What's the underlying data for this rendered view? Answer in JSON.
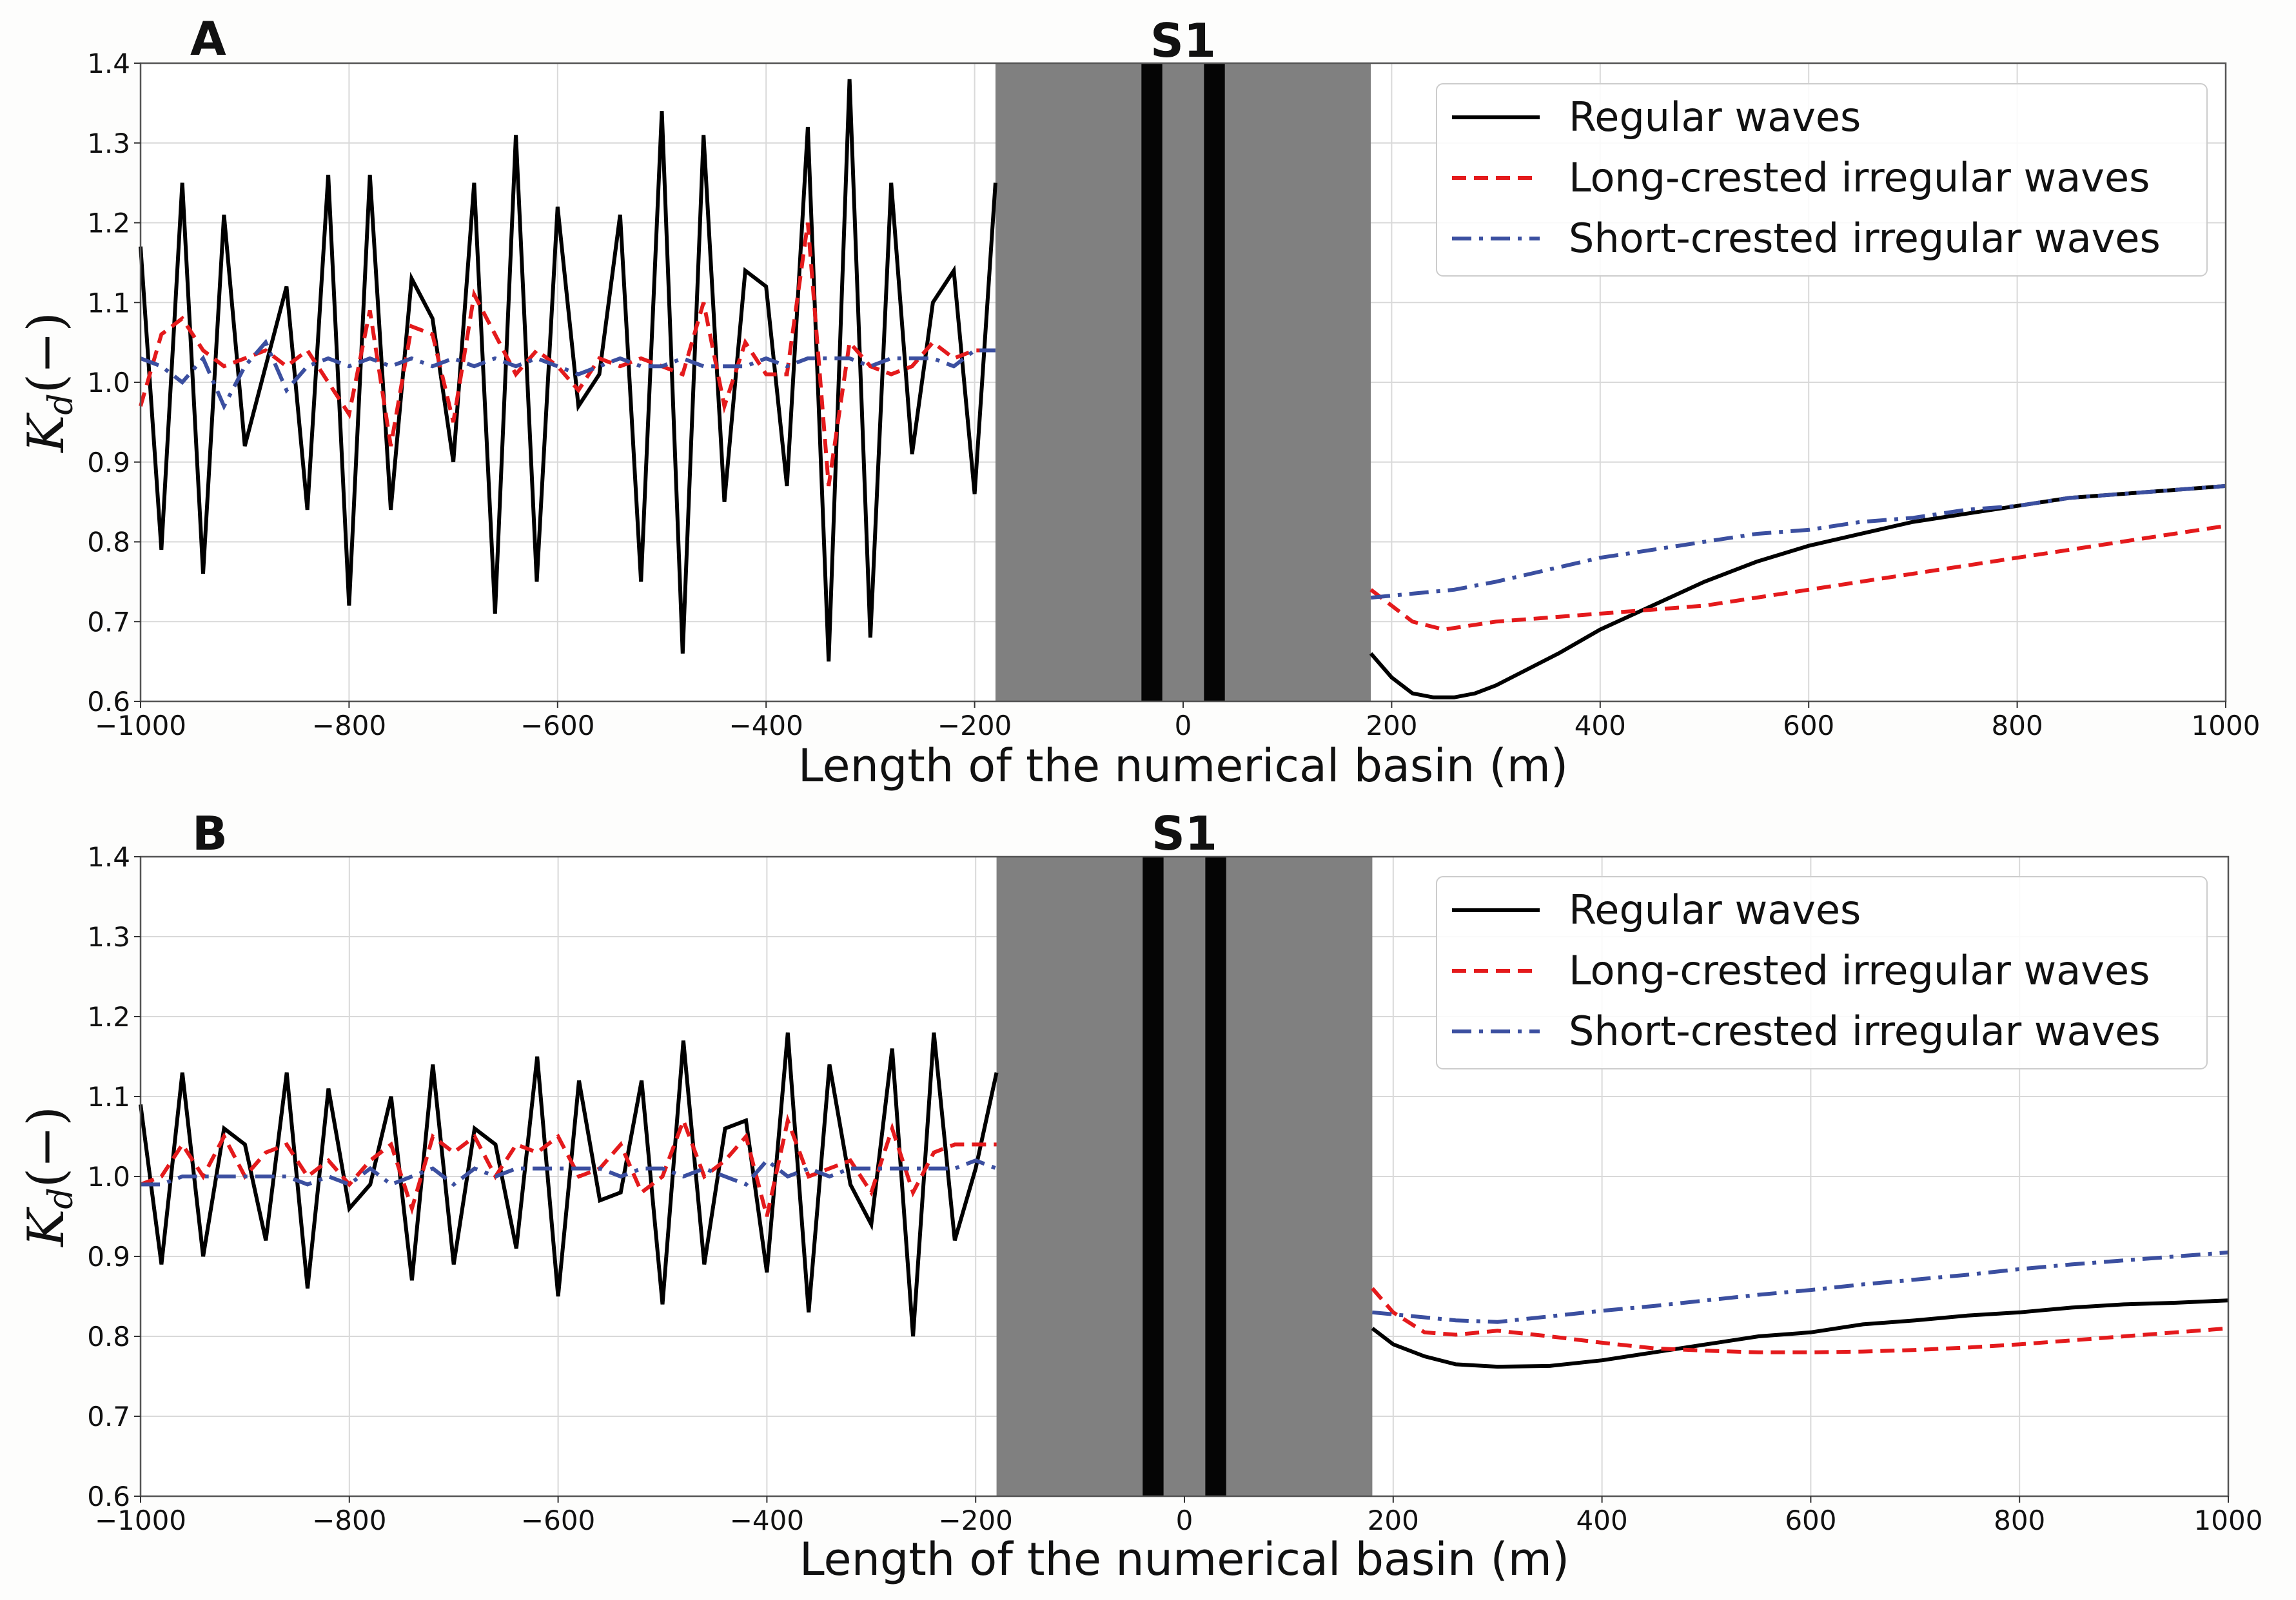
{
  "chart_data": [
    {
      "type": "line",
      "panel": "A",
      "structure_label": "S1",
      "xlabel": "Length of the numerical basin (m)",
      "ylabel_main": "K",
      "ylabel_sub": "d",
      "ylabel_suffix": "(−)",
      "xlim": [
        -1000,
        1000
      ],
      "ylim": [
        0.6,
        1.4
      ],
      "xticks": [
        -1000,
        -800,
        -600,
        -400,
        -200,
        0,
        200,
        400,
        600,
        800,
        1000
      ],
      "xtick_labels": [
        "−1000",
        "−800",
        "−600",
        "−400",
        "−200",
        "0",
        "200",
        "400",
        "600",
        "800",
        "1000"
      ],
      "yticks": [
        0.6,
        0.7,
        0.8,
        0.9,
        1.0,
        1.1,
        1.2,
        1.3,
        1.4
      ],
      "ytick_labels": [
        "0.6",
        "0.7",
        "0.8",
        "0.9",
        "1.0",
        "1.1",
        "1.2",
        "1.3",
        "1.4"
      ],
      "grid": true,
      "legend_position": "top-right",
      "structure_zone": [
        -180,
        180
      ],
      "structure_walls": [
        [
          -40,
          -20
        ],
        [
          20,
          40
        ]
      ],
      "series": [
        {
          "name": "Regular waves",
          "color": "#000000",
          "style": "solid",
          "x": [
            -1000,
            -980,
            -960,
            -940,
            -920,
            -900,
            -880,
            -860,
            -840,
            -820,
            -800,
            -780,
            -760,
            -740,
            -720,
            -700,
            -680,
            -660,
            -640,
            -620,
            -600,
            -580,
            -560,
            -540,
            -520,
            -500,
            -480,
            -460,
            -440,
            -420,
            -400,
            -380,
            -360,
            -340,
            -320,
            -300,
            -280,
            -260,
            -240,
            -220,
            -200,
            -180,
            null,
            180,
            200,
            220,
            240,
            260,
            280,
            300,
            330,
            360,
            400,
            450,
            500,
            550,
            600,
            650,
            700,
            750,
            800,
            850,
            900,
            950,
            1000
          ],
          "values": [
            1.17,
            0.79,
            1.25,
            0.76,
            1.21,
            0.92,
            1.02,
            1.12,
            0.84,
            1.26,
            0.72,
            1.26,
            0.84,
            1.13,
            1.08,
            0.9,
            1.25,
            0.71,
            1.31,
            0.75,
            1.22,
            0.97,
            1.01,
            1.21,
            0.75,
            1.34,
            0.66,
            1.31,
            0.85,
            1.14,
            1.12,
            0.87,
            1.32,
            0.65,
            1.38,
            0.68,
            1.25,
            0.91,
            1.1,
            1.14,
            0.86,
            1.25,
            null,
            0.66,
            0.63,
            0.61,
            0.605,
            0.605,
            0.61,
            0.62,
            0.64,
            0.66,
            0.69,
            0.72,
            0.75,
            0.775,
            0.795,
            0.81,
            0.825,
            0.835,
            0.845,
            0.855,
            0.86,
            0.865,
            0.87
          ]
        },
        {
          "name": "Long-crested irregular waves",
          "color": "#e41a1c",
          "style": "dashed",
          "x": [
            -1000,
            -980,
            -960,
            -940,
            -920,
            -900,
            -880,
            -860,
            -840,
            -820,
            -800,
            -780,
            -760,
            -740,
            -720,
            -700,
            -680,
            -660,
            -640,
            -620,
            -600,
            -580,
            -560,
            -540,
            -520,
            -500,
            -480,
            -460,
            -440,
            -420,
            -400,
            -380,
            -360,
            -340,
            -320,
            -300,
            -280,
            -260,
            -240,
            -220,
            -200,
            -180,
            null,
            180,
            200,
            220,
            250,
            300,
            350,
            400,
            450,
            500,
            550,
            600,
            650,
            700,
            750,
            800,
            850,
            900,
            950,
            1000
          ],
          "values": [
            0.97,
            1.06,
            1.08,
            1.04,
            1.02,
            1.03,
            1.04,
            1.02,
            1.04,
            1.0,
            0.96,
            1.09,
            0.92,
            1.07,
            1.06,
            0.95,
            1.11,
            1.06,
            1.01,
            1.04,
            1.02,
            0.99,
            1.03,
            1.02,
            1.03,
            1.02,
            1.01,
            1.1,
            0.97,
            1.05,
            1.01,
            1.01,
            1.2,
            0.87,
            1.05,
            1.02,
            1.01,
            1.02,
            1.05,
            1.03,
            1.04,
            1.04,
            null,
            0.74,
            0.72,
            0.7,
            0.69,
            0.7,
            0.705,
            0.71,
            0.715,
            0.72,
            0.73,
            0.74,
            0.75,
            0.76,
            0.77,
            0.78,
            0.79,
            0.8,
            0.81,
            0.82
          ]
        },
        {
          "name": "Short-crested irregular waves",
          "color": "#3b4fa0",
          "style": "dashdot",
          "x": [
            -1000,
            -980,
            -960,
            -940,
            -920,
            -900,
            -880,
            -860,
            -840,
            -820,
            -800,
            -780,
            -760,
            -740,
            -720,
            -700,
            -680,
            -660,
            -640,
            -620,
            -600,
            -580,
            -560,
            -540,
            -520,
            -500,
            -480,
            -460,
            -440,
            -420,
            -400,
            -380,
            -360,
            -340,
            -320,
            -300,
            -280,
            -260,
            -240,
            -220,
            -200,
            -180,
            null,
            180,
            220,
            260,
            300,
            350,
            400,
            450,
            500,
            550,
            600,
            650,
            700,
            750,
            800,
            850,
            900,
            950,
            1000
          ],
          "values": [
            1.03,
            1.02,
            1.0,
            1.03,
            0.97,
            1.02,
            1.05,
            0.99,
            1.02,
            1.03,
            1.02,
            1.03,
            1.02,
            1.03,
            1.02,
            1.03,
            1.02,
            1.03,
            1.02,
            1.03,
            1.02,
            1.01,
            1.02,
            1.03,
            1.02,
            1.02,
            1.03,
            1.02,
            1.02,
            1.02,
            1.03,
            1.02,
            1.03,
            1.03,
            1.03,
            1.02,
            1.03,
            1.03,
            1.03,
            1.02,
            1.04,
            1.04,
            null,
            0.73,
            0.735,
            0.74,
            0.75,
            0.765,
            0.78,
            0.79,
            0.8,
            0.81,
            0.815,
            0.825,
            0.83,
            0.84,
            0.845,
            0.855,
            0.86,
            0.865,
            0.87
          ]
        }
      ]
    },
    {
      "type": "line",
      "panel": "B",
      "structure_label": "S1",
      "xlabel": "Length of the numerical basin (m)",
      "ylabel_main": "K",
      "ylabel_sub": "d",
      "ylabel_suffix": "(−)",
      "xlim": [
        -1000,
        1000
      ],
      "ylim": [
        0.6,
        1.4
      ],
      "xticks": [
        -1000,
        -800,
        -600,
        -400,
        -200,
        0,
        200,
        400,
        600,
        800,
        1000
      ],
      "xtick_labels": [
        "−1000",
        "−800",
        "−600",
        "−400",
        "−200",
        "0",
        "200",
        "400",
        "600",
        "800",
        "1000"
      ],
      "yticks": [
        0.6,
        0.7,
        0.8,
        0.9,
        1.0,
        1.1,
        1.2,
        1.3,
        1.4
      ],
      "ytick_labels": [
        "0.6",
        "0.7",
        "0.8",
        "0.9",
        "1.0",
        "1.1",
        "1.2",
        "1.3",
        "1.4"
      ],
      "grid": true,
      "legend_position": "top-right",
      "structure_zone": [
        -180,
        180
      ],
      "structure_walls": [
        [
          -40,
          -20
        ],
        [
          20,
          40
        ]
      ],
      "series": [
        {
          "name": "Regular waves",
          "color": "#000000",
          "style": "solid",
          "x": [
            -1000,
            -980,
            -960,
            -940,
            -920,
            -900,
            -880,
            -860,
            -840,
            -820,
            -800,
            -780,
            -760,
            -740,
            -720,
            -700,
            -680,
            -660,
            -640,
            -620,
            -600,
            -580,
            -560,
            -540,
            -520,
            -500,
            -480,
            -460,
            -440,
            -420,
            -400,
            -380,
            -360,
            -340,
            -320,
            -300,
            -280,
            -260,
            -240,
            -220,
            -200,
            -180,
            null,
            180,
            200,
            230,
            260,
            300,
            350,
            400,
            450,
            500,
            550,
            600,
            650,
            700,
            750,
            800,
            850,
            900,
            950,
            1000
          ],
          "values": [
            1.09,
            0.89,
            1.13,
            0.9,
            1.06,
            1.04,
            0.92,
            1.13,
            0.86,
            1.11,
            0.96,
            0.99,
            1.1,
            0.87,
            1.14,
            0.89,
            1.06,
            1.04,
            0.91,
            1.15,
            0.85,
            1.12,
            0.97,
            0.98,
            1.12,
            0.84,
            1.17,
            0.89,
            1.06,
            1.07,
            0.88,
            1.18,
            0.83,
            1.14,
            0.99,
            0.94,
            1.16,
            0.8,
            1.18,
            0.92,
            1.01,
            1.13,
            null,
            0.81,
            0.79,
            0.775,
            0.765,
            0.762,
            0.763,
            0.77,
            0.78,
            0.79,
            0.8,
            0.805,
            0.815,
            0.82,
            0.826,
            0.83,
            0.836,
            0.84,
            0.842,
            0.845
          ]
        },
        {
          "name": "Long-crested irregular waves",
          "color": "#e41a1c",
          "style": "dashed",
          "x": [
            -1000,
            -980,
            -960,
            -940,
            -920,
            -900,
            -880,
            -860,
            -840,
            -820,
            -800,
            -780,
            -760,
            -740,
            -720,
            -700,
            -680,
            -660,
            -640,
            -620,
            -600,
            -580,
            -560,
            -540,
            -520,
            -500,
            -480,
            -460,
            -440,
            -420,
            -400,
            -380,
            -360,
            -340,
            -320,
            -300,
            -280,
            -260,
            -240,
            -220,
            -200,
            -180,
            null,
            180,
            200,
            230,
            260,
            300,
            350,
            400,
            450,
            500,
            550,
            600,
            650,
            700,
            750,
            800,
            850,
            900,
            950,
            1000
          ],
          "values": [
            0.99,
            1.0,
            1.04,
            1.0,
            1.05,
            1.0,
            1.03,
            1.04,
            1.0,
            1.02,
            0.99,
            1.02,
            1.04,
            0.96,
            1.05,
            1.03,
            1.05,
            1.0,
            1.04,
            1.03,
            1.05,
            1.0,
            1.01,
            1.04,
            0.98,
            1.0,
            1.07,
            1.0,
            1.02,
            1.05,
            0.95,
            1.07,
            1.0,
            1.01,
            1.02,
            0.98,
            1.06,
            0.98,
            1.03,
            1.04,
            1.04,
            1.04,
            null,
            0.86,
            0.83,
            0.805,
            0.802,
            0.807,
            0.8,
            0.792,
            0.785,
            0.782,
            0.78,
            0.78,
            0.781,
            0.783,
            0.786,
            0.79,
            0.795,
            0.8,
            0.805,
            0.81
          ]
        },
        {
          "name": "Short-crested irregular waves",
          "color": "#3b4fa0",
          "style": "dashdot",
          "x": [
            -1000,
            -980,
            -960,
            -940,
            -920,
            -900,
            -880,
            -860,
            -840,
            -820,
            -800,
            -780,
            -760,
            -740,
            -720,
            -700,
            -680,
            -660,
            -640,
            -620,
            -600,
            -580,
            -560,
            -540,
            -520,
            -500,
            -480,
            -460,
            -440,
            -420,
            -400,
            -380,
            -360,
            -340,
            -320,
            -300,
            -280,
            -260,
            -240,
            -220,
            -200,
            -180,
            null,
            180,
            220,
            260,
            300,
            350,
            400,
            450,
            500,
            550,
            600,
            650,
            700,
            750,
            800,
            850,
            900,
            950,
            1000
          ],
          "values": [
            0.99,
            0.99,
            1.0,
            1.0,
            1.0,
            1.0,
            1.0,
            1.0,
            0.99,
            1.0,
            0.99,
            1.01,
            0.99,
            1.0,
            1.01,
            0.99,
            1.01,
            1.0,
            1.01,
            1.01,
            1.01,
            1.01,
            1.01,
            1.0,
            1.01,
            1.01,
            1.0,
            1.01,
            1.0,
            0.99,
            1.02,
            1.0,
            1.01,
            1.0,
            1.01,
            1.01,
            1.01,
            1.01,
            1.01,
            1.01,
            1.02,
            1.01,
            null,
            0.83,
            0.825,
            0.82,
            0.818,
            0.825,
            0.832,
            0.838,
            0.845,
            0.852,
            0.858,
            0.865,
            0.871,
            0.877,
            0.884,
            0.89,
            0.895,
            0.9,
            0.905
          ]
        }
      ]
    }
  ]
}
